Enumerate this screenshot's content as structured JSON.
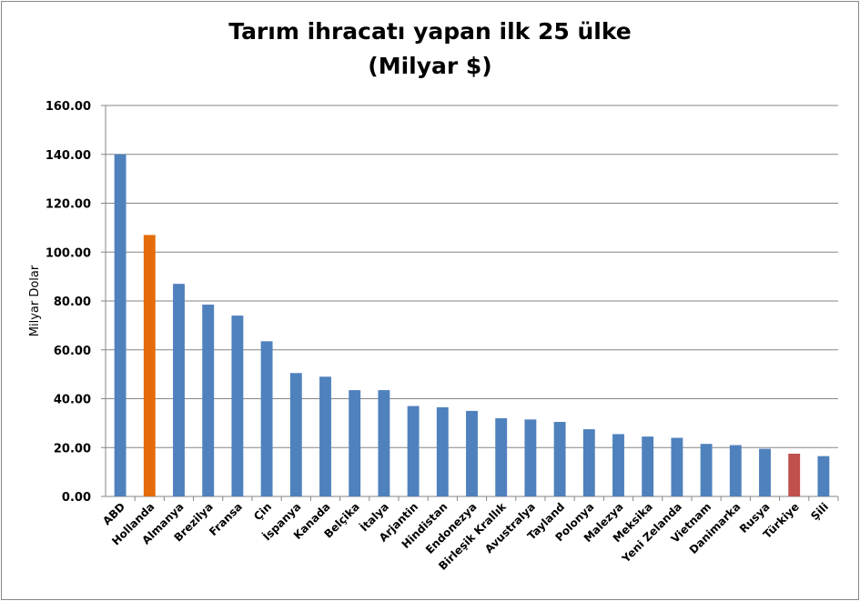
{
  "chart_data": {
    "type": "bar",
    "title": "Tarım ihracatı yapan ilk 25 ülke",
    "subtitle": "(Milyar $)",
    "xlabel": "",
    "ylabel": "Milyar Dolar",
    "ylim": [
      0,
      160
    ],
    "ytick_step": 20,
    "ytick_labels": [
      "0.00",
      "20.00",
      "40.00",
      "60.00",
      "80.00",
      "100.00",
      "120.00",
      "140.00",
      "160.00"
    ],
    "grid": true,
    "legend": "none",
    "categories": [
      "ABD",
      "Hollanda",
      "Almanya",
      "Brezilya",
      "Fransa",
      "Çin",
      "İspanya",
      "Kanada",
      "Belçika",
      "İtalya",
      "Arjantin",
      "Hindistan",
      "Endonezya",
      "Birleşik Krallık",
      "Avustralya",
      "Tayland",
      "Polonya",
      "Malezya",
      "Meksika",
      "Yeni Zelanda",
      "Vietnam",
      "Danimarka",
      "Rusya",
      "Türkiye",
      "Şili"
    ],
    "values": [
      140.0,
      107.0,
      87.0,
      78.5,
      74.0,
      63.5,
      50.5,
      49.0,
      43.5,
      43.5,
      37.0,
      36.5,
      35.0,
      32.0,
      31.5,
      30.5,
      27.5,
      25.5,
      24.5,
      24.0,
      21.5,
      21.0,
      19.5,
      17.5,
      16.5
    ],
    "colors": {
      "default": "#4f81bd",
      "Hollanda": "#e46c0a",
      "Türkiye": "#c0504d",
      "grid": "#868686",
      "text": "#000000"
    }
  }
}
